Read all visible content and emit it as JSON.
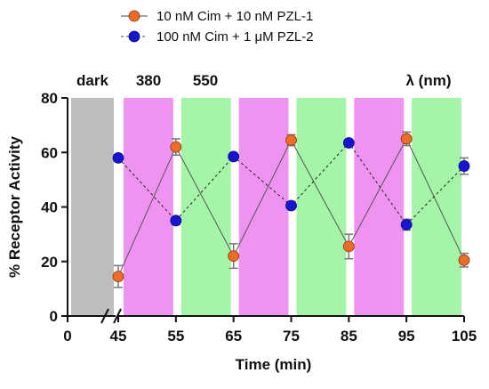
{
  "chart_data": {
    "type": "line",
    "xlabel": "Time (min)",
    "ylabel": "% Receptor Activity",
    "ylim": [
      0,
      80
    ],
    "y_ticks": [
      0,
      20,
      40,
      60,
      80
    ],
    "x_tick_labels": [
      "0",
      "45",
      "55",
      "65",
      "75",
      "85",
      "95",
      "105"
    ],
    "x_break": "between 0 and 45",
    "grid": false,
    "legend_position": "top-center",
    "band_labels": {
      "dark": "dark",
      "uv": "380",
      "green": "550",
      "lambda": "λ (nm)"
    },
    "bands": [
      {
        "kind": "dark",
        "start": 0,
        "end": 45
      },
      {
        "kind": "uv",
        "start": 45,
        "end": 55
      },
      {
        "kind": "green",
        "start": 55,
        "end": 65
      },
      {
        "kind": "uv",
        "start": 65,
        "end": 75
      },
      {
        "kind": "green",
        "start": 75,
        "end": 85
      },
      {
        "kind": "uv",
        "start": 85,
        "end": 95
      },
      {
        "kind": "green",
        "start": 95,
        "end": 105
      }
    ],
    "colors": {
      "dark": "#bdbdbd",
      "uv": "#ee93f0",
      "green": "#a4f5a8",
      "series1": "#f26b24",
      "series2": "#1515d6"
    },
    "series": [
      {
        "name": "10 nM Cim + 10 nM PZL-1",
        "color": "#f26b24",
        "marker": "circle",
        "line_style": "solid",
        "x": [
          45,
          55,
          65,
          75,
          85,
          95,
          105
        ],
        "y": [
          14.5,
          62,
          22,
          64.5,
          25.5,
          65,
          20.5
        ],
        "err": [
          4,
          3,
          4.5,
          2,
          4.5,
          2.5,
          2.5
        ]
      },
      {
        "name": "100 nM Cim + 1 μM PZL-2",
        "color": "#1515d6",
        "marker": "circle",
        "line_style": "dashed",
        "x": [
          45,
          55,
          65,
          75,
          85,
          95,
          105
        ],
        "y": [
          58,
          35,
          58.5,
          40.5,
          63.5,
          33.5,
          55
        ],
        "err": [
          0,
          1.5,
          0,
          0,
          0,
          2,
          3
        ]
      }
    ]
  }
}
